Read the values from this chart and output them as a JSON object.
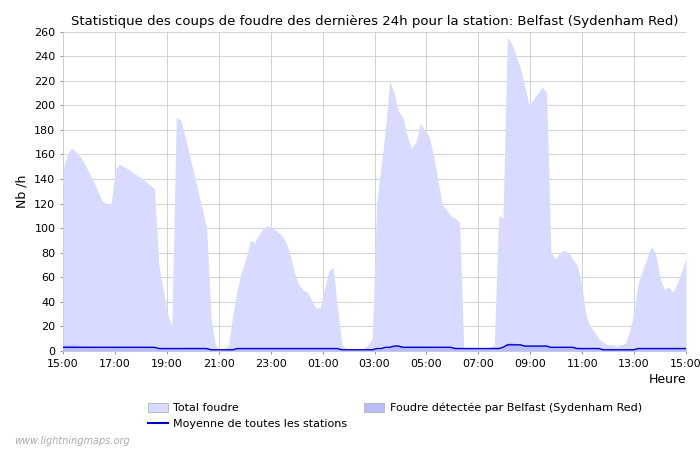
{
  "title": "Statistique des coups de foudre des dernières 24h pour la station: Belfast (Sydenham Red)",
  "xlabel": "Heure",
  "ylabel": "Nb /h",
  "ylim": [
    0,
    260
  ],
  "yticks": [
    0,
    20,
    40,
    60,
    80,
    100,
    120,
    140,
    160,
    180,
    200,
    220,
    240,
    260
  ],
  "xtick_labels": [
    "15:00",
    "17:00",
    "19:00",
    "21:00",
    "23:00",
    "01:00",
    "03:00",
    "05:00",
    "07:00",
    "09:00",
    "11:00",
    "13:00",
    "15:00"
  ],
  "background_color": "#ffffff",
  "plot_bg_color": "#ffffff",
  "grid_color": "#cccccc",
  "fill_total_color": "#d8daff",
  "fill_detected_color": "#b8bcf8",
  "line_moyenne_color": "#0000cc",
  "watermark": "www.lightningmaps.org",
  "total_foudre": [
    148,
    160,
    165,
    162,
    158,
    152,
    145,
    138,
    130,
    122,
    120,
    118,
    148,
    152,
    150,
    148,
    145,
    143,
    141,
    138,
    135,
    132,
    70,
    50,
    30,
    20,
    190,
    188,
    175,
    160,
    145,
    130,
    115,
    100,
    25,
    5,
    0,
    2,
    5,
    30,
    50,
    65,
    75,
    90,
    88,
    95,
    100,
    102,
    100,
    98,
    95,
    90,
    80,
    65,
    55,
    50,
    48,
    42,
    35,
    35,
    50,
    65,
    68,
    35,
    5,
    2,
    2,
    1,
    0,
    2,
    5,
    10,
    120,
    150,
    180,
    220,
    210,
    195,
    190,
    175,
    165,
    170,
    185,
    180,
    175,
    160,
    140,
    120,
    115,
    110,
    108,
    105,
    2,
    3,
    3,
    2,
    2,
    2,
    3,
    5,
    110,
    108,
    255,
    250,
    240,
    230,
    215,
    200,
    205,
    210,
    215,
    210,
    80,
    75,
    80,
    82,
    80,
    75,
    70,
    55,
    30,
    20,
    15,
    10,
    7,
    5,
    5,
    4,
    5,
    6,
    15,
    30,
    55,
    65,
    75,
    85,
    80,
    60,
    50,
    52,
    48,
    55,
    65,
    75
  ],
  "detected_foudre": [
    5,
    5,
    5,
    5,
    4,
    4,
    4,
    3,
    3,
    3,
    3,
    3,
    3,
    3,
    3,
    3,
    3,
    3,
    3,
    3,
    3,
    3,
    2,
    2,
    2,
    2,
    2,
    2,
    3,
    3,
    3,
    3,
    3,
    3,
    2,
    1,
    1,
    1,
    1,
    2,
    2,
    2,
    2,
    2,
    2,
    2,
    2,
    2,
    2,
    2,
    2,
    2,
    2,
    2,
    2,
    2,
    2,
    2,
    2,
    2,
    2,
    2,
    2,
    2,
    1,
    1,
    1,
    1,
    1,
    1,
    1,
    1,
    2,
    2,
    3,
    4,
    5,
    5,
    4,
    4,
    4,
    4,
    4,
    4,
    3,
    3,
    3,
    3,
    3,
    3,
    3,
    3,
    2,
    2,
    2,
    2,
    2,
    2,
    2,
    2,
    2,
    3,
    7,
    7,
    6,
    6,
    5,
    5,
    5,
    5,
    5,
    5,
    3,
    3,
    3,
    3,
    3,
    3,
    3,
    3,
    2,
    2,
    2,
    2,
    2,
    2,
    2,
    2,
    2,
    2,
    2,
    2,
    2,
    2,
    2,
    2,
    2,
    2,
    2,
    2,
    2,
    2,
    2,
    2
  ],
  "moyenne_stations": [
    3,
    3,
    3,
    3,
    3,
    3,
    3,
    3,
    3,
    3,
    3,
    3,
    3,
    3,
    3,
    3,
    3,
    3,
    3,
    3,
    3,
    3,
    2,
    2,
    2,
    2,
    2,
    2,
    2,
    2,
    2,
    2,
    2,
    2,
    1,
    1,
    1,
    1,
    1,
    1,
    2,
    2,
    2,
    2,
    2,
    2,
    2,
    2,
    2,
    2,
    2,
    2,
    2,
    2,
    2,
    2,
    2,
    2,
    2,
    2,
    2,
    2,
    2,
    2,
    1,
    1,
    1,
    1,
    1,
    1,
    1,
    1,
    2,
    2,
    3,
    3,
    4,
    4,
    3,
    3,
    3,
    3,
    3,
    3,
    3,
    3,
    3,
    3,
    3,
    3,
    2,
    2,
    2,
    2,
    2,
    2,
    2,
    2,
    2,
    2,
    2,
    3,
    5,
    5,
    5,
    5,
    4,
    4,
    4,
    4,
    4,
    4,
    3,
    3,
    3,
    3,
    3,
    3,
    2,
    2,
    2,
    2,
    2,
    2,
    1,
    1,
    1,
    1,
    1,
    1,
    1,
    1,
    2,
    2,
    2,
    2,
    2,
    2,
    2,
    2,
    2,
    2,
    2,
    2
  ]
}
